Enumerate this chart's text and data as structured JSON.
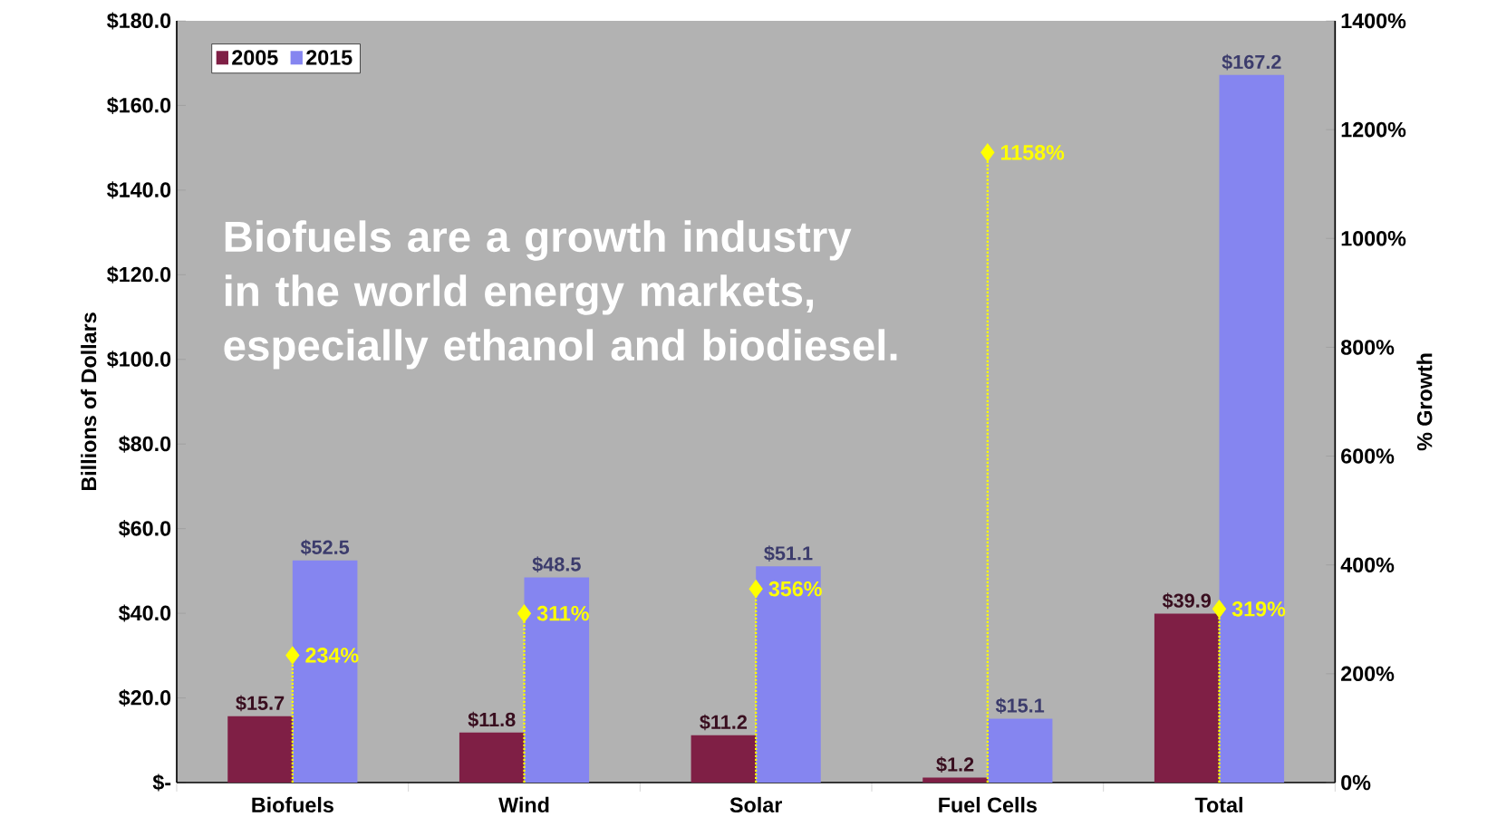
{
  "chart_data": {
    "type": "bar",
    "ylabel": "Billions of Dollars",
    "y2label": "% Growth",
    "categories": [
      "Biofuels",
      "Wind",
      "Solar",
      "Fuel Cells",
      "Total"
    ],
    "series": [
      {
        "name": "2005",
        "color": "#7f1f45",
        "values": [
          15.7,
          11.8,
          11.2,
          1.2,
          39.9
        ],
        "value_labels": [
          "$15.7",
          "$11.8",
          "$11.2",
          "$1.2",
          "$39.9"
        ]
      },
      {
        "name": "2015",
        "color": "#8585f0",
        "values": [
          52.5,
          48.5,
          51.1,
          15.1,
          167.2
        ],
        "value_labels": [
          "$52.5",
          "$48.5",
          "$51.1",
          "$15.1",
          "$167.2"
        ]
      },
      {
        "type": "lollipop",
        "axis": "y2",
        "color": "#ffff00",
        "marker": "diamond",
        "line_style": "dotted",
        "values": [
          234,
          311,
          356,
          1158,
          319
        ],
        "value_labels": [
          "234%",
          "311%",
          "356%",
          "1158%",
          "319%"
        ]
      }
    ],
    "ylim": [
      0,
      180
    ],
    "yticks": [
      {
        "value": 0,
        "label": "$-"
      },
      {
        "value": 20,
        "label": "$20.0"
      },
      {
        "value": 40,
        "label": "$40.0"
      },
      {
        "value": 60,
        "label": "$60.0"
      },
      {
        "value": 80,
        "label": "$80.0"
      },
      {
        "value": 100,
        "label": "$100.0"
      },
      {
        "value": 120,
        "label": "$120.0"
      },
      {
        "value": 140,
        "label": "$140.0"
      },
      {
        "value": 160,
        "label": "$160.0"
      },
      {
        "value": 180,
        "label": "$180.0"
      }
    ],
    "y2lim": [
      0,
      1400
    ],
    "y2ticks": [
      {
        "value": 0,
        "label": "0%"
      },
      {
        "value": 200,
        "label": "200%"
      },
      {
        "value": 400,
        "label": "400%"
      },
      {
        "value": 600,
        "label": "600%"
      },
      {
        "value": 800,
        "label": "800%"
      },
      {
        "value": 1000,
        "label": "1000%"
      },
      {
        "value": 1200,
        "label": "1200%"
      },
      {
        "value": 1400,
        "label": "1400%"
      }
    ],
    "legend": "top left",
    "annotations": [
      "Biofuels are a growth industry in the world energy markets, especially ethanol and biodiesel."
    ]
  }
}
